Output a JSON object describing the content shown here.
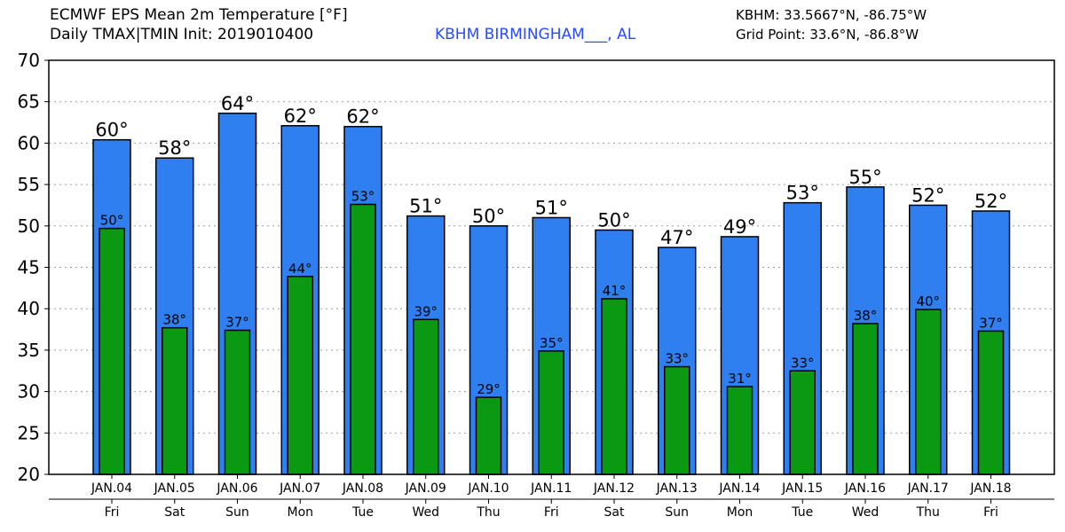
{
  "header": {
    "title_line1": "ECMWF EPS Mean 2m Temperature [°F]",
    "title_line2": "Daily TMAX|TMIN Init: 2019010400",
    "station": "KBHM BIRMINGHAM___, AL",
    "coords": "KBHM: 33.5667°N, -86.75°W",
    "grid_point": "Grid Point: 33.6°N, -86.8°W"
  },
  "colors": {
    "tmax_bar": "#2f7ff0",
    "tmin_bar": "#0b9812",
    "station_text": "#2a4bff"
  },
  "chart_data": {
    "type": "bar",
    "title": "ECMWF EPS Mean 2m Temperature [°F]",
    "categories": [
      "JAN.04",
      "JAN.05",
      "JAN.06",
      "JAN.07",
      "JAN.08",
      "JAN.09",
      "JAN.10",
      "JAN.11",
      "JAN.12",
      "JAN.13",
      "JAN.14",
      "JAN.15",
      "JAN.16",
      "JAN.17",
      "JAN.18"
    ],
    "weekdays": [
      "Fri",
      "Sat",
      "Sun",
      "Mon",
      "Tue",
      "Wed",
      "Thu",
      "Fri",
      "Sat",
      "Sun",
      "Mon",
      "Tue",
      "Wed",
      "Thu",
      "Fri"
    ],
    "series": [
      {
        "name": "TMAX",
        "values": [
          60.4,
          58.2,
          63.6,
          62.1,
          62.0,
          51.2,
          50.0,
          51.0,
          49.5,
          47.4,
          48.7,
          52.8,
          54.7,
          52.5,
          51.8
        ],
        "labels": [
          "60°",
          "58°",
          "64°",
          "62°",
          "62°",
          "51°",
          "50°",
          "51°",
          "50°",
          "47°",
          "49°",
          "53°",
          "55°",
          "52°",
          "52°"
        ]
      },
      {
        "name": "TMIN",
        "values": [
          49.7,
          37.7,
          37.4,
          43.9,
          52.6,
          38.7,
          29.3,
          34.9,
          41.2,
          33.0,
          30.6,
          32.5,
          38.2,
          39.9,
          37.3
        ],
        "labels": [
          "50°",
          "38°",
          "37°",
          "44°",
          "53°",
          "39°",
          "29°",
          "35°",
          "41°",
          "33°",
          "31°",
          "33°",
          "38°",
          "40°",
          "37°"
        ]
      }
    ],
    "yticks": [
      "20",
      "25",
      "30",
      "35",
      "40",
      "45",
      "50",
      "55",
      "60",
      "65",
      "70"
    ],
    "ylim": [
      20,
      70
    ],
    "grid": true
  }
}
